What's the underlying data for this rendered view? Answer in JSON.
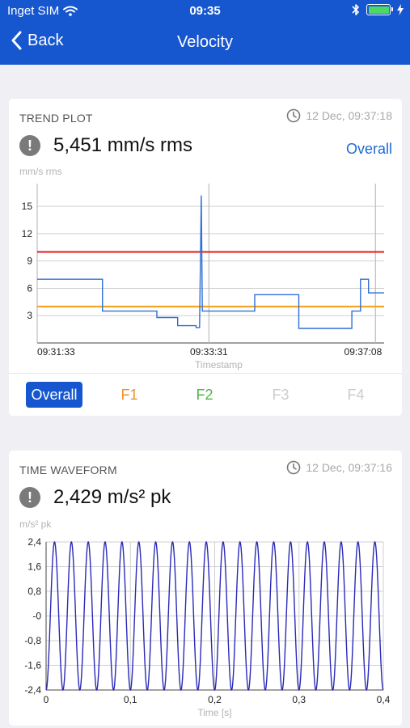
{
  "status_bar": {
    "carrier": "Inget SIM",
    "time": "09:35"
  },
  "nav": {
    "back_label": "Back",
    "title": "Velocity"
  },
  "trend": {
    "header": "TREND PLOT",
    "timestamp": "12 Dec, 09:37:18",
    "value": "5,451 mm/s rms",
    "overall_link": "Overall",
    "unit": "mm/s rms",
    "tabs": [
      {
        "label": "Overall",
        "color": "#ffffff",
        "active": true
      },
      {
        "label": "F1",
        "color": "#f0922a",
        "active": false
      },
      {
        "label": "F2",
        "color": "#4fb44a",
        "active": false
      },
      {
        "label": "F3",
        "color": "#cccccc",
        "active": false
      },
      {
        "label": "F4",
        "color": "#cccccc",
        "active": false
      }
    ]
  },
  "waveform": {
    "header": "TIME WAVEFORM",
    "timestamp": "12 Dec, 09:37:16",
    "value": "2,429 m/s² pk",
    "unit": "m/s² pk"
  },
  "colors": {
    "accent": "#1657cf",
    "series": "#2f6fd6",
    "alarm": "#e52420",
    "warning": "#f5a623",
    "waveform": "#2a2ab8"
  },
  "chart_data": [
    {
      "type": "line",
      "title": "TREND PLOT",
      "xlabel": "Timestamp",
      "ylabel": "mm/s rms",
      "xticks": [
        "09:31:33",
        "09:33:31",
        "09:37:08"
      ],
      "yticks": [
        3,
        6,
        9,
        12,
        15
      ],
      "ylim": [
        0,
        17.5
      ],
      "xlim": [
        0,
        100
      ],
      "grid": true,
      "thresholds": [
        {
          "value": 10,
          "color": "#e52420"
        },
        {
          "value": 4,
          "color": "#f5a623"
        }
      ],
      "series": [
        {
          "x": [
            0,
            18.8,
            18.8,
            34.5,
            34.5,
            40.5,
            40.5,
            45.8,
            45.8,
            46.8,
            46.8,
            47.3,
            47.6,
            47.9,
            48.2,
            48.2,
            62.7,
            62.7,
            75.4,
            75.4,
            90.7,
            90.7,
            93.2,
            93.2,
            95.5,
            95.5,
            100
          ],
          "y": [
            7.0,
            7.0,
            3.5,
            3.5,
            2.8,
            2.8,
            1.9,
            1.9,
            1.7,
            1.7,
            1.9,
            16.2,
            3.5,
            3.5,
            3.5,
            3.5,
            3.5,
            5.3,
            5.3,
            1.6,
            1.6,
            3.5,
            3.5,
            7.0,
            7.0,
            5.5,
            5.5
          ]
        }
      ]
    },
    {
      "type": "line",
      "title": "TIME WAVEFORM",
      "xlabel": "Time [s]",
      "ylabel": "m/s² pk",
      "xticks": [
        "0",
        "0,1",
        "0,2",
        "0,3",
        "0,4"
      ],
      "yticks": [
        "2,4",
        "1,6",
        "0,8",
        "-0",
        "-0,8",
        "-1,6",
        "-2,4"
      ],
      "xlim": [
        0,
        0.4
      ],
      "ylim": [
        -2.4,
        2.4
      ],
      "grid": true,
      "series": [
        {
          "function": "sine",
          "amplitude": 2.4,
          "frequency_hz": 50,
          "phase_deg": -90,
          "x_range": [
            0,
            0.4
          ]
        }
      ]
    }
  ]
}
